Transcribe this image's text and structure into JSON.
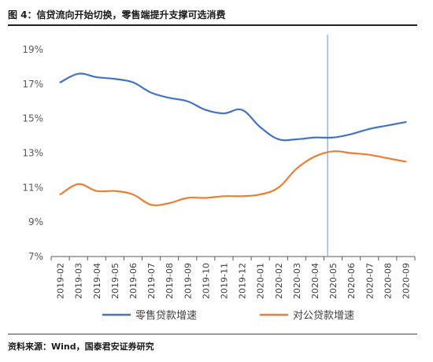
{
  "figure": {
    "title": "图 4：信贷流向开始切换，零售端提升支撑可选消费",
    "source": "资料来源：Wind，国泰君安证券研究"
  },
  "chart_data": {
    "type": "line",
    "categories": [
      "2019-02",
      "2019-03",
      "2019-04",
      "2019-05",
      "2019-06",
      "2019-07",
      "2019-08",
      "2019-09",
      "2019-10",
      "2019-11",
      "2019-12",
      "2020-01",
      "2020-02",
      "2020-03",
      "2020-04",
      "2020-05",
      "2020-06",
      "2020-07",
      "2020-08",
      "2020-09"
    ],
    "series": [
      {
        "name": "零售贷款增速",
        "color": "#4472c4",
        "values": [
          17.1,
          17.6,
          17.4,
          17.3,
          17.1,
          16.5,
          16.2,
          16.0,
          15.5,
          15.3,
          15.5,
          14.5,
          13.8,
          13.8,
          13.9,
          13.9,
          14.1,
          14.4,
          14.6,
          14.8
        ]
      },
      {
        "name": "对公贷款增速",
        "color": "#ed7d31",
        "values": [
          10.6,
          11.2,
          10.8,
          10.8,
          10.6,
          10.0,
          10.1,
          10.4,
          10.4,
          10.5,
          10.5,
          10.6,
          11.0,
          12.1,
          12.8,
          13.1,
          13.0,
          12.9,
          12.7,
          12.5
        ]
      }
    ],
    "ylim": [
      7,
      19
    ],
    "yticks": [
      7,
      9,
      11,
      13,
      15,
      17,
      19
    ],
    "ytick_labels": [
      "7%",
      "9%",
      "11%",
      "13%",
      "15%",
      "17%",
      "19%"
    ],
    "marker_line_at": 14.7,
    "marker_line_color": "#8fa9d8",
    "grid": false,
    "legend": "bottom"
  }
}
